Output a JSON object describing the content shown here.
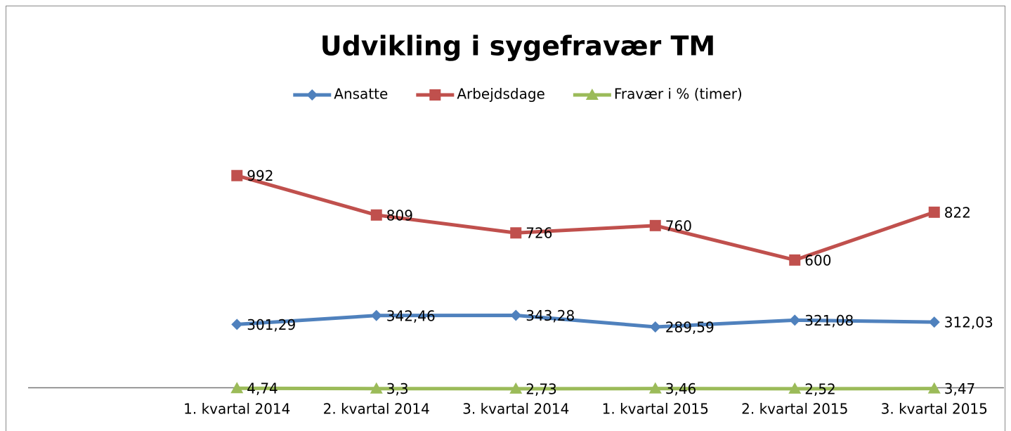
{
  "chart_data": {
    "type": "line",
    "title": "Udvikling i sygefravær TM",
    "categories": [
      "1. kvartal 2014",
      "2. kvartal 2014",
      "3. kvartal 2014",
      "1. kvartal 2015",
      "2. kvartal 2015",
      "3. kvartal 2015"
    ],
    "series": [
      {
        "name": "Ansatte",
        "color": "#4f81bd",
        "marker": "diamond",
        "values": [
          301.29,
          342.46,
          343.28,
          289.59,
          321.08,
          312.03
        ],
        "value_labels": [
          "301,29",
          "342,46",
          "343,28",
          "289,59",
          "321,08",
          "312,03"
        ]
      },
      {
        "name": "Arbejdsdage",
        "color": "#c0504d",
        "marker": "square",
        "values": [
          992,
          809,
          726,
          760,
          600,
          822
        ]
      },
      {
        "name": "Fravær i % (timer)",
        "color": "#9bbb59",
        "marker": "triangle",
        "values": [
          4.74,
          3.3,
          2.73,
          3.46,
          2.52,
          3.47
        ],
        "value_labels": [
          "4,74",
          "3,3",
          "2,73",
          "3,46",
          "2,52",
          "3,47"
        ]
      }
    ],
    "ylim": [
      0,
      1200
    ],
    "legend": "top"
  }
}
